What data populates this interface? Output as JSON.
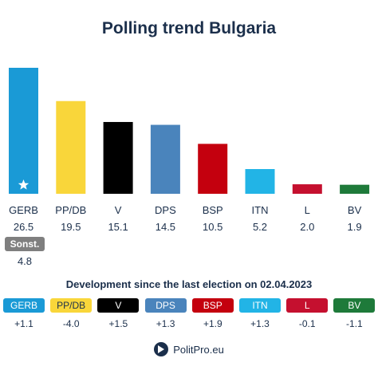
{
  "title": "Polling trend Bulgaria",
  "chart_data": {
    "type": "bar",
    "categories": [
      "GERB",
      "PP/DB",
      "V",
      "DPS",
      "BSP",
      "ITN",
      "L",
      "BV"
    ],
    "values": [
      26.5,
      19.5,
      15.1,
      14.5,
      10.5,
      5.2,
      2.0,
      1.9
    ],
    "value_labels": [
      "26.5",
      "19.5",
      "15.1",
      "14.5",
      "10.5",
      "5.2",
      "2.0",
      "1.9"
    ],
    "colors": [
      "#1a9ad6",
      "#f9d63a",
      "#000000",
      "#4a84bc",
      "#c4000e",
      "#22b4e6",
      "#c5102f",
      "#1e7a3a"
    ],
    "leader_marker": "star-icon",
    "ylim": [
      0,
      26.5
    ]
  },
  "others": {
    "label": "Sonst.",
    "value": "4.8",
    "color": "#7f7f7f"
  },
  "development": {
    "title": "Development since the last election on 02.04.2023",
    "items": [
      {
        "label": "GERB",
        "delta": "+1.1",
        "bg": "#1a9ad6",
        "fg": "#ffffff"
      },
      {
        "label": "PP/DB",
        "delta": "-4.0",
        "bg": "#f9d63a",
        "fg": "#1b2f4b"
      },
      {
        "label": "V",
        "delta": "+1.5",
        "bg": "#000000",
        "fg": "#ffffff"
      },
      {
        "label": "DPS",
        "delta": "+1.3",
        "bg": "#4a84bc",
        "fg": "#ffffff"
      },
      {
        "label": "BSP",
        "delta": "+1.9",
        "bg": "#c4000e",
        "fg": "#ffffff"
      },
      {
        "label": "ITN",
        "delta": "+1.3",
        "bg": "#22b4e6",
        "fg": "#ffffff"
      },
      {
        "label": "L",
        "delta": "-0.1",
        "bg": "#c5102f",
        "fg": "#ffffff"
      },
      {
        "label": "BV",
        "delta": "-1.1",
        "bg": "#1e7a3a",
        "fg": "#ffffff"
      }
    ]
  },
  "footer": {
    "brand": "PolitPro.eu",
    "logo_icon": "politpro-logo-icon"
  }
}
